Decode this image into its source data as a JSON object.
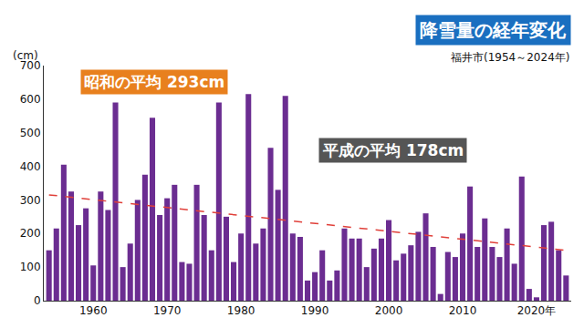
{
  "chart_data": {
    "type": "bar",
    "title": "降雪量の経年変化",
    "subtitle": "福井市(1954～2024年)",
    "y_label": "(cm)",
    "x": [
      1954,
      1955,
      1956,
      1957,
      1958,
      1959,
      1960,
      1961,
      1962,
      1963,
      1964,
      1965,
      1966,
      1967,
      1968,
      1969,
      1970,
      1971,
      1972,
      1973,
      1974,
      1975,
      1976,
      1977,
      1978,
      1979,
      1980,
      1981,
      1982,
      1983,
      1984,
      1985,
      1986,
      1987,
      1988,
      1989,
      1990,
      1991,
      1992,
      1993,
      1994,
      1995,
      1996,
      1997,
      1998,
      1999,
      2000,
      2001,
      2002,
      2003,
      2004,
      2005,
      2006,
      2007,
      2008,
      2009,
      2010,
      2011,
      2012,
      2013,
      2014,
      2015,
      2016,
      2017,
      2018,
      2019,
      2020,
      2021,
      2022,
      2023,
      2024
    ],
    "series": [
      {
        "type": "bar",
        "color": "#6b2d91",
        "values": [
          150,
          215,
          405,
          325,
          225,
          275,
          105,
          325,
          270,
          590,
          100,
          170,
          300,
          375,
          545,
          255,
          305,
          345,
          115,
          110,
          345,
          255,
          150,
          590,
          250,
          115,
          200,
          615,
          170,
          215,
          455,
          330,
          610,
          200,
          190,
          60,
          85,
          150,
          60,
          90,
          215,
          185,
          185,
          100,
          155,
          185,
          240,
          120,
          140,
          165,
          205,
          260,
          160,
          20,
          145,
          130,
          200,
          340,
          160,
          245,
          160,
          130,
          215,
          110,
          370,
          35,
          10,
          225,
          235,
          150,
          75
        ]
      },
      {
        "type": "line",
        "line_style": "dash",
        "color": "#e0403a",
        "x": [
          1954,
          2024
        ],
        "values": [
          315,
          150
        ]
      }
    ],
    "annotations": [
      {
        "text": "昭和の平均 293cm",
        "color": "#e8801e"
      },
      {
        "text": "平成の平均 178cm",
        "color": "#555555"
      }
    ],
    "xlim": [
      1953.3,
      2024.7
    ],
    "xticks": [
      1960,
      1970,
      1980,
      1990,
      2000,
      2010,
      {
        "value": 2020,
        "label": "2020年"
      }
    ],
    "ylim": [
      0,
      700
    ],
    "yticks": [
      0,
      100,
      200,
      300,
      400,
      500,
      600,
      700
    ],
    "grid": false
  }
}
